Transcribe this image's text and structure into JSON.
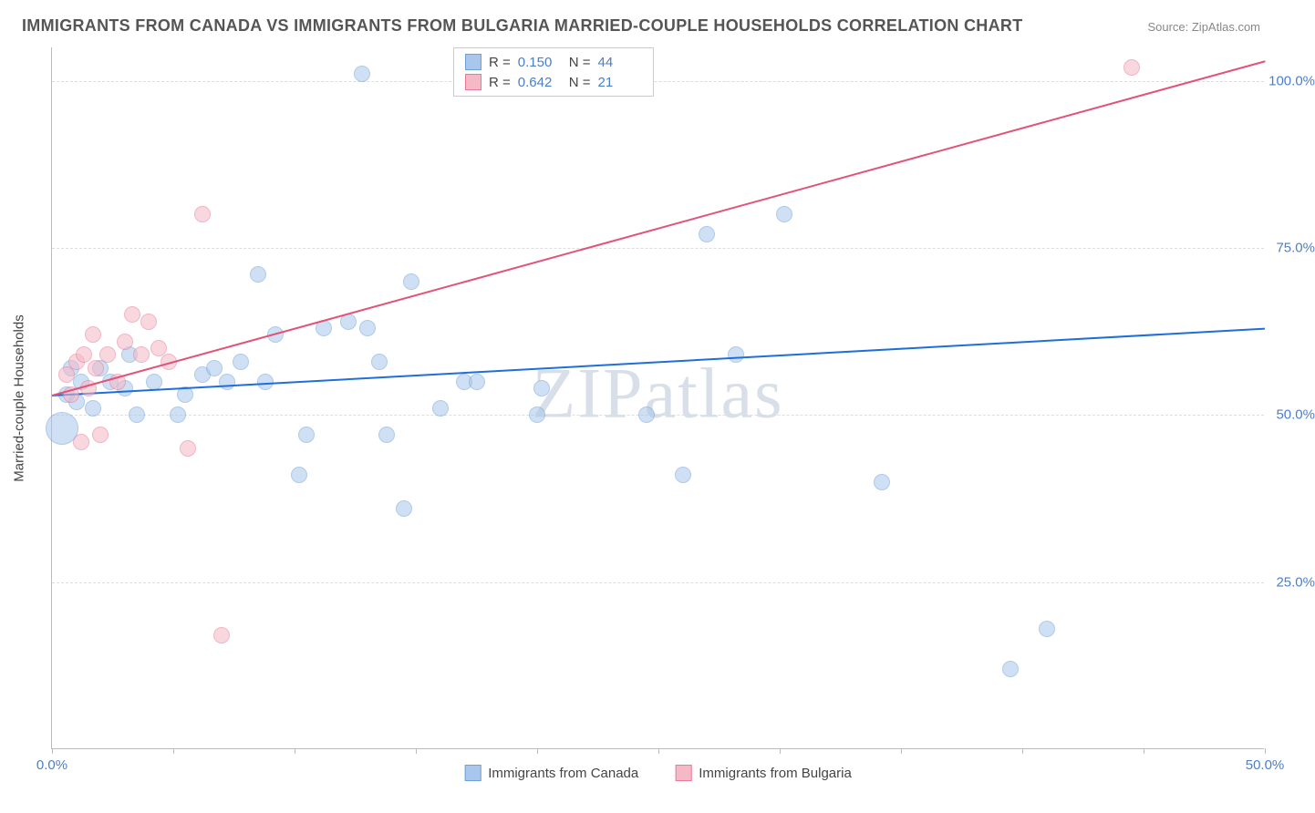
{
  "chart": {
    "type": "scatter",
    "title": "IMMIGRANTS FROM CANADA VS IMMIGRANTS FROM BULGARIA MARRIED-COUPLE HOUSEHOLDS CORRELATION CHART",
    "source_label": "Source: ZipAtlas.com",
    "watermark": "ZIPatlas",
    "y_axis_title": "Married-couple Households",
    "background_color": "#ffffff",
    "grid_color": "#dddddd",
    "axis_color": "#bbbbbb",
    "text_color": "#555555",
    "tick_label_color": "#4a7fc8",
    "title_fontsize": 18,
    "label_fontsize": 15,
    "xlim": [
      0,
      50
    ],
    "ylim": [
      0,
      105
    ],
    "x_ticks": [
      0,
      5,
      10,
      15,
      20,
      25,
      30,
      35,
      40,
      45,
      50
    ],
    "x_tick_labels": {
      "0": "0.0%",
      "50": "50.0%"
    },
    "y_ticks": [
      25,
      50,
      75,
      100
    ],
    "y_tick_labels": {
      "25": "25.0%",
      "50": "50.0%",
      "75": "75.0%",
      "100": "100.0%"
    },
    "series": [
      {
        "name": "Immigrants from Canada",
        "fill_color": "#a9c7ec",
        "stroke_color": "#6f9fd8",
        "trend_color": "#1e6fd9",
        "fill_opacity": 0.55,
        "marker_radius": 9,
        "R": "0.150",
        "N": "44",
        "trend": {
          "x1": 0,
          "y1": 53,
          "x2": 50,
          "y2": 63
        },
        "points": [
          {
            "x": 0.4,
            "y": 48,
            "r": 18
          },
          {
            "x": 0.6,
            "y": 53
          },
          {
            "x": 0.8,
            "y": 57
          },
          {
            "x": 1.0,
            "y": 52
          },
          {
            "x": 1.2,
            "y": 55
          },
          {
            "x": 1.7,
            "y": 51
          },
          {
            "x": 2.0,
            "y": 57
          },
          {
            "x": 2.4,
            "y": 55
          },
          {
            "x": 3.0,
            "y": 54
          },
          {
            "x": 3.2,
            "y": 59
          },
          {
            "x": 3.5,
            "y": 50
          },
          {
            "x": 4.2,
            "y": 55
          },
          {
            "x": 5.2,
            "y": 50
          },
          {
            "x": 5.5,
            "y": 53
          },
          {
            "x": 6.2,
            "y": 56
          },
          {
            "x": 6.7,
            "y": 57
          },
          {
            "x": 7.2,
            "y": 55
          },
          {
            "x": 7.8,
            "y": 58
          },
          {
            "x": 8.5,
            "y": 71
          },
          {
            "x": 8.8,
            "y": 55
          },
          {
            "x": 9.2,
            "y": 62
          },
          {
            "x": 10.2,
            "y": 41
          },
          {
            "x": 10.5,
            "y": 47
          },
          {
            "x": 11.2,
            "y": 63
          },
          {
            "x": 12.2,
            "y": 64
          },
          {
            "x": 12.8,
            "y": 101
          },
          {
            "x": 13.0,
            "y": 63
          },
          {
            "x": 13.5,
            "y": 58
          },
          {
            "x": 13.8,
            "y": 47
          },
          {
            "x": 14.5,
            "y": 36
          },
          {
            "x": 14.8,
            "y": 70
          },
          {
            "x": 16.0,
            "y": 51
          },
          {
            "x": 17.0,
            "y": 55
          },
          {
            "x": 17.5,
            "y": 55
          },
          {
            "x": 20.0,
            "y": 50
          },
          {
            "x": 20.2,
            "y": 54
          },
          {
            "x": 24.5,
            "y": 50
          },
          {
            "x": 26.0,
            "y": 41
          },
          {
            "x": 27.0,
            "y": 77
          },
          {
            "x": 28.2,
            "y": 59
          },
          {
            "x": 30.2,
            "y": 80
          },
          {
            "x": 34.2,
            "y": 40
          },
          {
            "x": 39.5,
            "y": 12
          },
          {
            "x": 41.0,
            "y": 18
          }
        ]
      },
      {
        "name": "Immigrants from Bulgaria",
        "fill_color": "#f5b8c6",
        "stroke_color": "#e77a97",
        "trend_color": "#e15377",
        "fill_opacity": 0.55,
        "marker_radius": 9,
        "R": "0.642",
        "N": "21",
        "trend": {
          "x1": 0,
          "y1": 53,
          "x2": 50,
          "y2": 103
        },
        "points": [
          {
            "x": 0.6,
            "y": 56
          },
          {
            "x": 0.8,
            "y": 53
          },
          {
            "x": 1.0,
            "y": 58
          },
          {
            "x": 1.2,
            "y": 46
          },
          {
            "x": 1.3,
            "y": 59
          },
          {
            "x": 1.5,
            "y": 54
          },
          {
            "x": 1.7,
            "y": 62
          },
          {
            "x": 1.8,
            "y": 57
          },
          {
            "x": 2.0,
            "y": 47
          },
          {
            "x": 2.3,
            "y": 59
          },
          {
            "x": 2.7,
            "y": 55
          },
          {
            "x": 3.0,
            "y": 61
          },
          {
            "x": 3.3,
            "y": 65
          },
          {
            "x": 3.7,
            "y": 59
          },
          {
            "x": 4.0,
            "y": 64
          },
          {
            "x": 4.4,
            "y": 60
          },
          {
            "x": 4.8,
            "y": 58
          },
          {
            "x": 5.6,
            "y": 45
          },
          {
            "x": 6.2,
            "y": 80
          },
          {
            "x": 7.0,
            "y": 17
          },
          {
            "x": 44.5,
            "y": 102
          }
        ]
      }
    ],
    "bottom_legend": [
      {
        "label": "Immigrants from Canada",
        "fill": "#a9c7ec",
        "stroke": "#6f9fd8"
      },
      {
        "label": "Immigrants from Bulgaria",
        "fill": "#f5b8c6",
        "stroke": "#e77a97"
      }
    ]
  }
}
